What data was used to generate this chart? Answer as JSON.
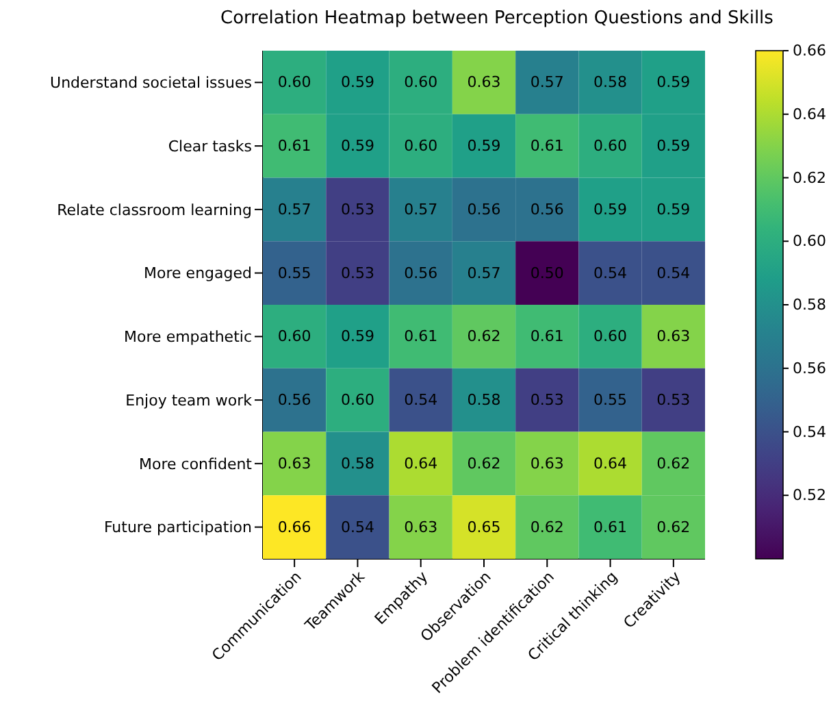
{
  "chart_data": {
    "type": "heatmap",
    "title": "Correlation Heatmap between Perception Questions and Skills",
    "categories": [
      "Communication",
      "Teamwork",
      "Empathy",
      "Observation",
      "Problem identification",
      "Critical thinking",
      "Creativity"
    ],
    "y_categories": [
      "Understand societal issues",
      "Clear tasks",
      "Relate classroom learning",
      "More engaged",
      "More empathetic",
      "Enjoy team work",
      "More confident",
      "Future participation"
    ],
    "cells": [
      [
        0.6,
        0.59,
        0.6,
        0.63,
        0.57,
        0.58,
        0.59
      ],
      [
        0.61,
        0.59,
        0.6,
        0.59,
        0.61,
        0.6,
        0.59
      ],
      [
        0.57,
        0.53,
        0.57,
        0.56,
        0.56,
        0.59,
        0.59
      ],
      [
        0.55,
        0.53,
        0.56,
        0.57,
        0.5,
        0.54,
        0.54
      ],
      [
        0.6,
        0.59,
        0.61,
        0.62,
        0.61,
        0.6,
        0.63
      ],
      [
        0.56,
        0.6,
        0.54,
        0.58,
        0.53,
        0.55,
        0.53
      ],
      [
        0.63,
        0.58,
        0.64,
        0.62,
        0.63,
        0.64,
        0.62
      ],
      [
        0.66,
        0.54,
        0.63,
        0.65,
        0.62,
        0.61,
        0.62
      ]
    ],
    "clim": [
      0.5,
      0.66
    ],
    "cticks": [
      0.52,
      0.54,
      0.56,
      0.58,
      {
        "value": 0.6,
        "label": "0.60"
      },
      0.62,
      0.64,
      0.66
    ],
    "cell_labels": [
      [
        "0.60",
        "0.59",
        "0.60",
        "0.63",
        "0.57",
        "0.58",
        "0.59"
      ],
      [
        "0.61",
        "0.59",
        "0.60",
        "0.59",
        "0.61",
        "0.60",
        "0.59"
      ],
      [
        "0.57",
        "0.53",
        "0.57",
        "0.56",
        "0.56",
        "0.59",
        "0.59"
      ],
      [
        "0.55",
        "0.53",
        "0.56",
        "0.57",
        "0.50",
        "0.54",
        "0.54"
      ],
      [
        "0.60",
        "0.59",
        "0.61",
        "0.62",
        "0.61",
        "0.60",
        "0.63"
      ],
      [
        "0.56",
        "0.60",
        "0.54",
        "0.58",
        "0.53",
        "0.55",
        "0.53"
      ],
      [
        "0.63",
        "0.58",
        "0.64",
        "0.62",
        "0.63",
        "0.64",
        "0.62"
      ],
      [
        "0.66",
        "0.54",
        "0.63",
        "0.65",
        "0.62",
        "0.61",
        "0.62"
      ]
    ]
  }
}
